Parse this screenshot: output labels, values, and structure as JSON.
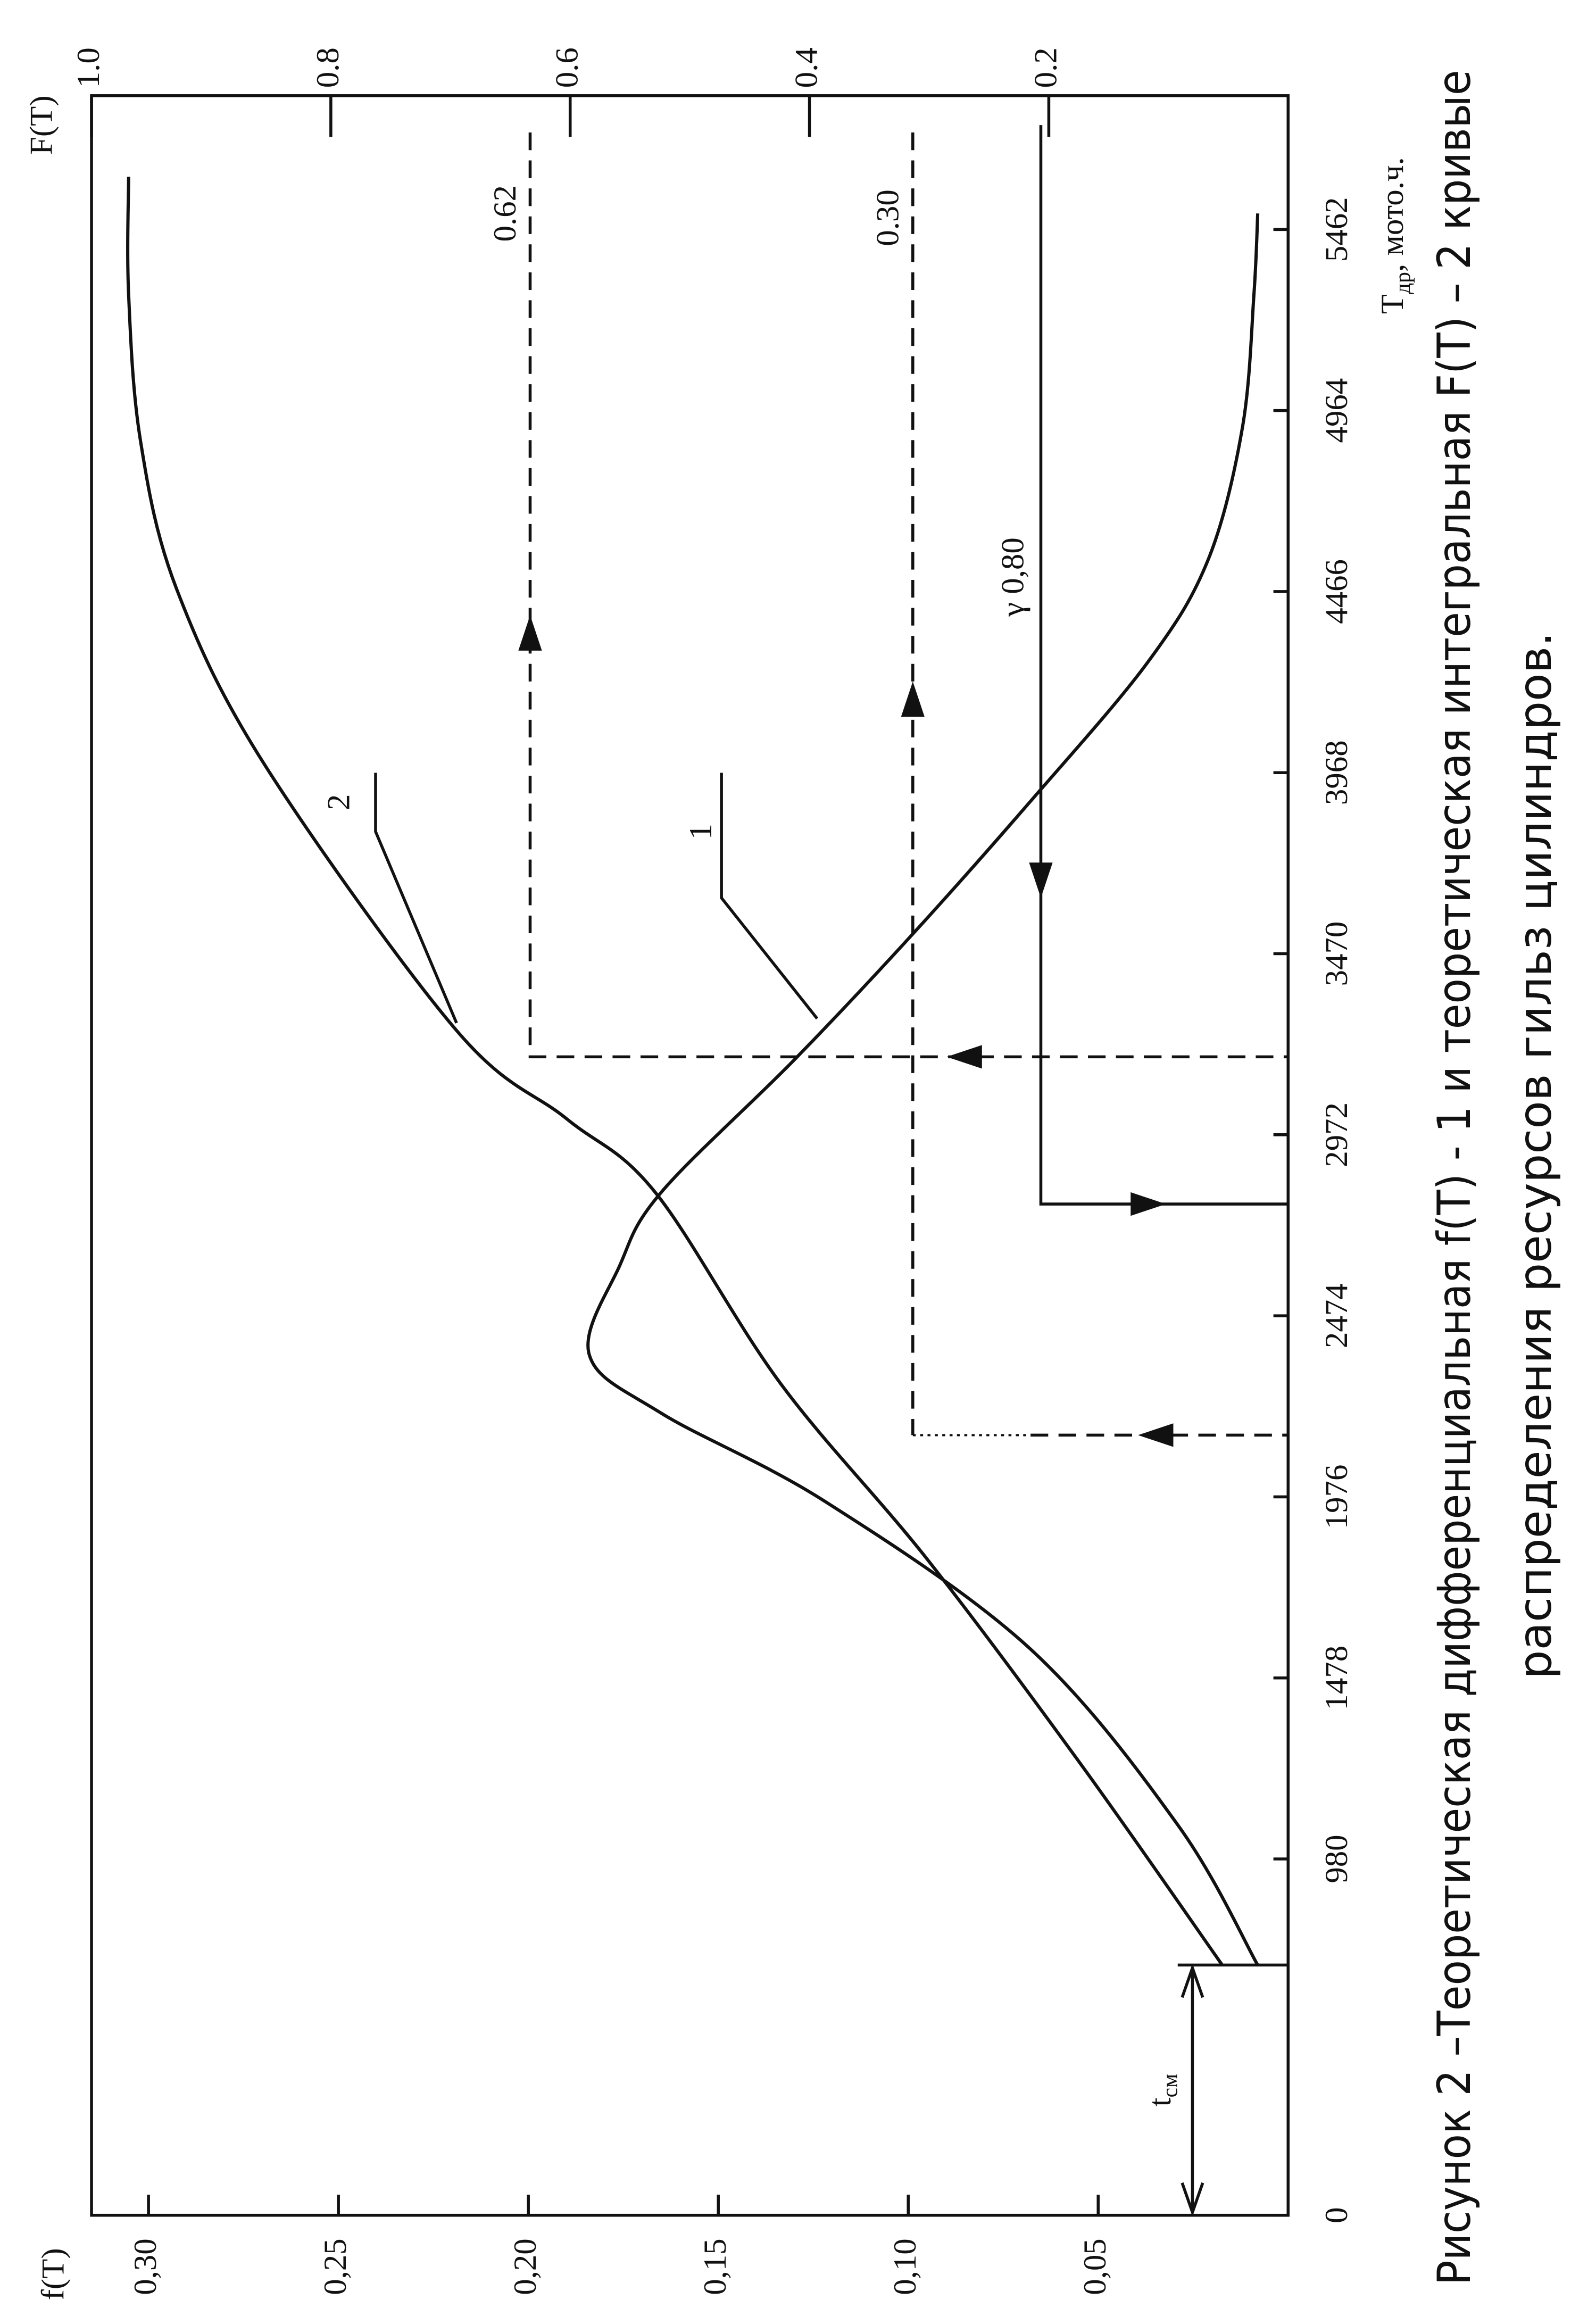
{
  "chart_data": {
    "type": "line",
    "ylabel": "f(T)",
    "y2label": "F(T)",
    "xlabel": {
      "text": "T",
      "sub": "др",
      "suffix": ", мото.ч."
    },
    "xlim": [
      0,
      5830
    ],
    "xticks": [
      0,
      980,
      1478,
      1976,
      2474,
      2972,
      3470,
      3968,
      4466,
      4964,
      5462
    ],
    "ylim": [
      0,
      0.315
    ],
    "yticks": [
      {
        "value": 0.05,
        "label": "0,05"
      },
      {
        "value": 0.1,
        "label": "0,10"
      },
      {
        "value": 0.15,
        "label": "0,15"
      },
      {
        "value": 0.2,
        "label": "0,20"
      },
      {
        "value": 0.25,
        "label": "0,25"
      },
      {
        "value": 0.3,
        "label": "0,30"
      }
    ],
    "y2lim": [
      0,
      1
    ],
    "y2ticks": [
      0.2,
      0.4,
      0.6,
      0.8,
      {
        "value": 1,
        "label": "1.0"
      }
    ],
    "series": [
      {
        "name": "1",
        "color": "#111111",
        "x": [
          688,
          1073,
          1559,
          1964,
          2206,
          2368,
          2611,
          2814,
          3178,
          3522,
          3887,
          4271,
          4555,
          4919,
          5283,
          5506
        ],
        "values": [
          0.008,
          0.029,
          0.068,
          0.122,
          0.165,
          0.184,
          0.176,
          0.165,
          0.13,
          0.099,
          0.068,
          0.037,
          0.021,
          0.012,
          0.009,
          0.008
        ]
      },
      {
        "name": "2",
        "color": "#111111",
        "axis": "y2",
        "x": [
          688,
          1235,
          1802,
          2287,
          2814,
          3016,
          3259,
          3988,
          4474,
          4879,
          5283,
          5607
        ],
        "values": [
          0.055,
          0.172,
          0.301,
          0.424,
          0.529,
          0.603,
          0.695,
          0.855,
          0.929,
          0.959,
          0.969,
          0.969
        ]
      }
    ],
    "annotations": [
      "0.62",
      "0.30",
      "γ 0,80",
      {
        "text": "t",
        "sub": "см"
      }
    ],
    "caption": [
      "Рисунок 2 –Теоретическая  дифференциальная f(T)  - 1 и теоретическая интегральная F(T) – 2 кривые",
      "распределения ресурсов гильз цилиндров."
    ]
  }
}
